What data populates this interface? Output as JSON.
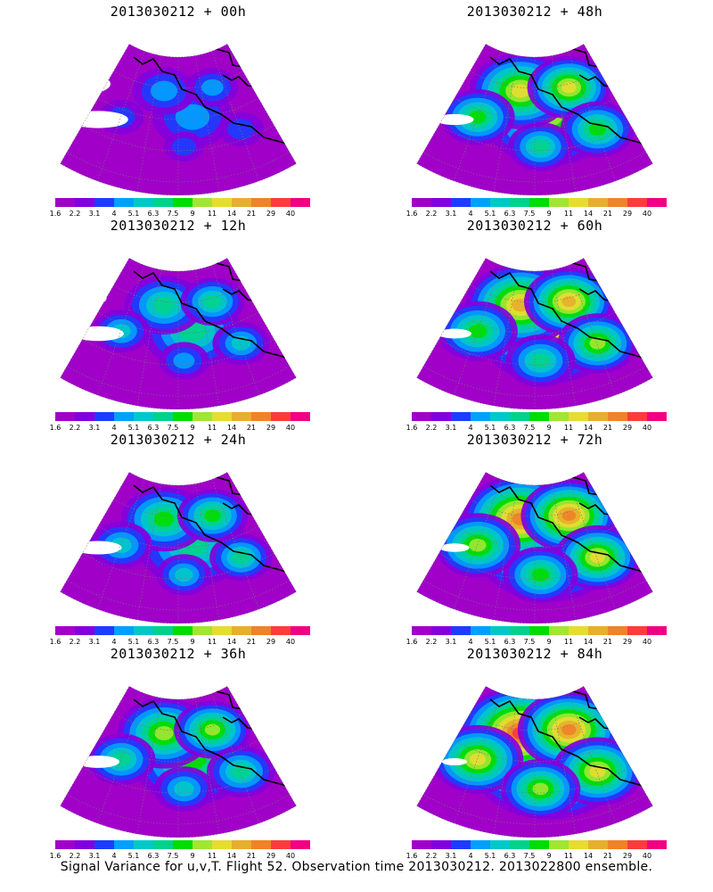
{
  "footer_caption": "Signal Variance for u,v,T. Flight 52. Observation time 2013030212. 2013022800 ensemble.",
  "colorbar": {
    "labels": [
      "1.6",
      "2.2",
      "3.1",
      "4",
      "5.1",
      "6.3",
      "7.5",
      "9",
      "11",
      "14",
      "21",
      "29",
      "40"
    ],
    "colors": [
      "#a000c8",
      "#8200dc",
      "#1e3cff",
      "#00a0ff",
      "#00c8c8",
      "#00d28c",
      "#00dc00",
      "#a0e632",
      "#e6dc32",
      "#e6af2d",
      "#f08228",
      "#fa3c3c",
      "#f00082"
    ]
  },
  "panels": [
    {
      "title": "2013030212 + 00h",
      "intensity": 0.05
    },
    {
      "title": "2013030212 + 48h",
      "intensity": 0.55
    },
    {
      "title": "2013030212 + 12h",
      "intensity": 0.25
    },
    {
      "title": "2013030212 + 60h",
      "intensity": 0.65
    },
    {
      "title": "2013030212 + 24h",
      "intensity": 0.35
    },
    {
      "title": "2013030212 + 72h",
      "intensity": 0.75
    },
    {
      "title": "2013030212 + 36h",
      "intensity": 0.45
    },
    {
      "title": "2013030212 + 84h",
      "intensity": 0.85
    }
  ]
}
